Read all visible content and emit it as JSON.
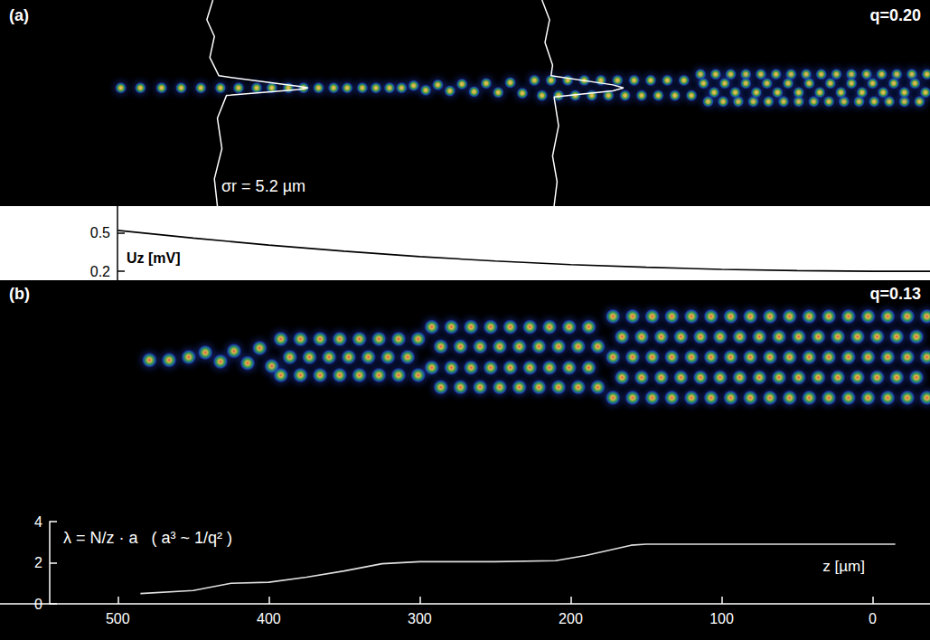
{
  "chart_data": [
    {
      "type": "scatter",
      "title": "(a)",
      "subtitle": "q=0.20",
      "annotation": "σr = 5.2 µm",
      "xlim": [
        578,
        -38
      ],
      "ylim": [
        -78,
        58
      ],
      "tick_labels": false,
      "ions": [
        [
          498,
          0
        ],
        [
          485,
          0
        ],
        [
          471,
          0
        ],
        [
          458,
          0
        ],
        [
          445,
          0
        ],
        [
          432,
          0
        ],
        [
          420,
          0
        ],
        [
          408,
          0
        ],
        [
          398,
          0
        ],
        [
          387,
          0
        ],
        [
          377,
          0
        ],
        [
          367,
          0
        ],
        [
          357,
          0
        ],
        [
          348,
          0
        ],
        [
          338,
          0
        ],
        [
          329,
          0
        ],
        [
          320,
          0
        ],
        [
          312,
          0
        ],
        [
          304,
          1.5
        ],
        [
          296,
          -1.5
        ],
        [
          288,
          2
        ],
        [
          280,
          -2
        ],
        [
          272,
          2.5
        ],
        [
          264,
          -2.5
        ],
        [
          256,
          3
        ],
        [
          248,
          -3
        ],
        [
          240,
          3.5
        ],
        [
          232,
          -3.5
        ],
        [
          224,
          5
        ],
        [
          213,
          5
        ],
        [
          202,
          5
        ],
        [
          191,
          5
        ],
        [
          180,
          5
        ],
        [
          169,
          5
        ],
        [
          158,
          5
        ],
        [
          147,
          5
        ],
        [
          136,
          5
        ],
        [
          125,
          5
        ],
        [
          219,
          -5
        ],
        [
          208,
          -5
        ],
        [
          197,
          -5
        ],
        [
          186,
          -5
        ],
        [
          175,
          -5
        ],
        [
          164,
          -5
        ],
        [
          153,
          -5
        ],
        [
          142,
          -5
        ],
        [
          131,
          -5
        ],
        [
          120,
          -5
        ],
        [
          114,
          9
        ],
        [
          104,
          9
        ],
        [
          94,
          9
        ],
        [
          84,
          9
        ],
        [
          74,
          9
        ],
        [
          64,
          9
        ],
        [
          54,
          9
        ],
        [
          44,
          9
        ],
        [
          34,
          9
        ],
        [
          24,
          9
        ],
        [
          14,
          9
        ],
        [
          4,
          9
        ],
        [
          -6,
          9
        ],
        [
          -16,
          9
        ],
        [
          -26,
          9
        ],
        [
          -36,
          9
        ],
        [
          109,
          -9
        ],
        [
          99,
          -9
        ],
        [
          89,
          -9
        ],
        [
          79,
          -9
        ],
        [
          69,
          -9
        ],
        [
          59,
          -9
        ],
        [
          49,
          -9
        ],
        [
          39,
          -9
        ],
        [
          29,
          -9
        ],
        [
          19,
          -9
        ],
        [
          9,
          -9
        ],
        [
          -1,
          -9
        ],
        [
          -11,
          -9
        ],
        [
          -21,
          -9
        ],
        [
          -31,
          -9
        ],
        [
          112,
          3
        ],
        [
          98,
          3
        ],
        [
          84,
          3
        ],
        [
          70,
          3
        ],
        [
          56,
          3
        ],
        [
          42,
          3
        ],
        [
          28,
          3
        ],
        [
          14,
          3
        ],
        [
          0,
          3
        ],
        [
          -14,
          3
        ],
        [
          -28,
          3
        ],
        [
          105,
          -3
        ],
        [
          91,
          -3
        ],
        [
          77,
          -3
        ],
        [
          63,
          -3
        ],
        [
          49,
          -3
        ],
        [
          35,
          -3
        ],
        [
          21,
          -3
        ],
        [
          7,
          -3
        ],
        [
          -7,
          -3
        ],
        [
          -21,
          -3
        ],
        [
          -35,
          -3
        ]
      ],
      "profiles": [
        [
          [
            437,
            58
          ],
          [
            441,
            45
          ],
          [
            436,
            34
          ],
          [
            439,
            20
          ],
          [
            433,
            8
          ],
          [
            380,
            1
          ],
          [
            374,
            0
          ],
          [
            380,
            -1
          ],
          [
            428,
            -5
          ],
          [
            434,
            -20
          ],
          [
            431,
            -40
          ],
          [
            436,
            -60
          ],
          [
            434,
            -78
          ]
        ],
        [
          [
            219,
            58
          ],
          [
            214,
            45
          ],
          [
            217,
            30
          ],
          [
            212,
            15
          ],
          [
            213,
            8
          ],
          [
            172,
            2
          ],
          [
            165,
            0
          ],
          [
            172,
            -2
          ],
          [
            211,
            -6
          ],
          [
            208,
            -25
          ],
          [
            212,
            -45
          ],
          [
            209,
            -62
          ],
          [
            211,
            -78
          ]
        ]
      ]
    },
    {
      "type": "line",
      "ylabel": "Uz [mV]",
      "color": "#000000",
      "x": [
        500,
        450,
        400,
        350,
        300,
        250,
        200,
        150,
        100,
        50,
        0,
        -38
      ],
      "values": [
        0.52,
        0.46,
        0.405,
        0.357,
        0.315,
        0.28,
        0.252,
        0.232,
        0.215,
        0.205,
        0.2,
        0.2
      ],
      "xlim": [
        578,
        -38
      ],
      "ylim": [
        0.13,
        0.71
      ],
      "yticks": [
        0.2,
        0.5
      ],
      "tick_labels": "y"
    },
    {
      "type": "scatter",
      "title": "(b)",
      "subtitle": "q=0.13",
      "xlim": [
        578,
        -38
      ],
      "ylim": [
        -39,
        39
      ],
      "tick_labels": false,
      "ions": [
        [
          479,
          -2
        ],
        [
          466,
          -2
        ],
        [
          453,
          0
        ],
        [
          442,
          3
        ],
        [
          432,
          -3
        ],
        [
          423,
          4
        ],
        [
          414,
          -4
        ],
        [
          406,
          6
        ],
        [
          398,
          -6
        ],
        [
          392,
          12
        ],
        [
          379,
          12
        ],
        [
          366,
          12
        ],
        [
          353,
          12
        ],
        [
          340,
          12
        ],
        [
          327,
          12
        ],
        [
          314,
          12
        ],
        [
          301,
          12
        ],
        [
          392,
          -12
        ],
        [
          379,
          -12
        ],
        [
          366,
          -12
        ],
        [
          353,
          -12
        ],
        [
          340,
          -12
        ],
        [
          327,
          -12
        ],
        [
          314,
          -12
        ],
        [
          301,
          -12
        ],
        [
          386,
          0
        ],
        [
          373,
          0
        ],
        [
          360,
          0
        ],
        [
          347,
          0
        ],
        [
          334,
          0
        ],
        [
          321,
          0
        ],
        [
          308,
          0
        ],
        [
          292,
          20
        ],
        [
          279,
          20
        ],
        [
          266,
          20
        ],
        [
          253,
          20
        ],
        [
          240,
          20
        ],
        [
          227,
          20
        ],
        [
          214,
          20
        ],
        [
          201,
          20
        ],
        [
          188,
          20
        ],
        [
          292,
          -7
        ],
        [
          279,
          -7
        ],
        [
          266,
          -7
        ],
        [
          253,
          -7
        ],
        [
          240,
          -7
        ],
        [
          227,
          -7
        ],
        [
          214,
          -7
        ],
        [
          201,
          -7
        ],
        [
          188,
          -7
        ],
        [
          286,
          7
        ],
        [
          273,
          7
        ],
        [
          260,
          7
        ],
        [
          247,
          7
        ],
        [
          234,
          7
        ],
        [
          221,
          7
        ],
        [
          208,
          7
        ],
        [
          195,
          7
        ],
        [
          182,
          7
        ],
        [
          286,
          -20
        ],
        [
          273,
          -20
        ],
        [
          260,
          -20
        ],
        [
          247,
          -20
        ],
        [
          234,
          -20
        ],
        [
          221,
          -20
        ],
        [
          208,
          -20
        ],
        [
          195,
          -20
        ],
        [
          182,
          -20
        ],
        [
          172,
          27
        ],
        [
          159,
          27
        ],
        [
          146,
          27
        ],
        [
          133,
          27
        ],
        [
          120,
          27
        ],
        [
          107,
          27
        ],
        [
          94,
          27
        ],
        [
          81,
          27
        ],
        [
          68,
          27
        ],
        [
          55,
          27
        ],
        [
          42,
          27
        ],
        [
          29,
          27
        ],
        [
          16,
          27
        ],
        [
          3,
          27
        ],
        [
          -10,
          27
        ],
        [
          -23,
          27
        ],
        [
          -36,
          27
        ],
        [
          172,
          0
        ],
        [
          159,
          0
        ],
        [
          146,
          0
        ],
        [
          133,
          0
        ],
        [
          120,
          0
        ],
        [
          107,
          0
        ],
        [
          94,
          0
        ],
        [
          81,
          0
        ],
        [
          68,
          0
        ],
        [
          55,
          0
        ],
        [
          42,
          0
        ],
        [
          29,
          0
        ],
        [
          16,
          0
        ],
        [
          3,
          0
        ],
        [
          -10,
          0
        ],
        [
          -23,
          0
        ],
        [
          -36,
          0
        ],
        [
          172,
          -27
        ],
        [
          159,
          -27
        ],
        [
          146,
          -27
        ],
        [
          133,
          -27
        ],
        [
          120,
          -27
        ],
        [
          107,
          -27
        ],
        [
          94,
          -27
        ],
        [
          81,
          -27
        ],
        [
          68,
          -27
        ],
        [
          55,
          -27
        ],
        [
          42,
          -27
        ],
        [
          29,
          -27
        ],
        [
          16,
          -27
        ],
        [
          3,
          -27
        ],
        [
          -10,
          -27
        ],
        [
          -23,
          -27
        ],
        [
          -36,
          -27
        ],
        [
          166,
          13.5
        ],
        [
          153,
          13.5
        ],
        [
          140,
          13.5
        ],
        [
          127,
          13.5
        ],
        [
          114,
          13.5
        ],
        [
          101,
          13.5
        ],
        [
          88,
          13.5
        ],
        [
          75,
          13.5
        ],
        [
          62,
          13.5
        ],
        [
          49,
          13.5
        ],
        [
          36,
          13.5
        ],
        [
          23,
          13.5
        ],
        [
          10,
          13.5
        ],
        [
          -3,
          13.5
        ],
        [
          -16,
          13.5
        ],
        [
          -29,
          13.5
        ],
        [
          166,
          -13.5
        ],
        [
          153,
          -13.5
        ],
        [
          140,
          -13.5
        ],
        [
          127,
          -13.5
        ],
        [
          114,
          -13.5
        ],
        [
          101,
          -13.5
        ],
        [
          88,
          -13.5
        ],
        [
          75,
          -13.5
        ],
        [
          62,
          -13.5
        ],
        [
          49,
          -13.5
        ],
        [
          36,
          -13.5
        ],
        [
          23,
          -13.5
        ],
        [
          10,
          -13.5
        ],
        [
          -3,
          -13.5
        ],
        [
          -16,
          -13.5
        ],
        [
          -29,
          -13.5
        ]
      ]
    },
    {
      "type": "line",
      "annotation": "λ = N/z · a   ( a³ ~ 1/q² )",
      "xlabel": "z [µm]",
      "color": "#e0e0e0",
      "x": [
        485,
        450,
        425,
        400,
        375,
        350,
        325,
        300,
        250,
        210,
        190,
        160,
        150,
        100,
        50,
        0,
        -15
      ],
      "values": [
        0.5,
        0.65,
        1.0,
        1.05,
        1.3,
        1.6,
        1.95,
        2.05,
        2.05,
        2.1,
        2.35,
        2.85,
        2.9,
        2.9,
        2.9,
        2.9,
        2.9
      ],
      "xlim": [
        578,
        -38
      ],
      "ylim": [
        0,
        4
      ],
      "xticks": [
        500,
        400,
        300,
        200,
        100,
        0
      ],
      "yticks": [
        0,
        2,
        4
      ]
    }
  ]
}
